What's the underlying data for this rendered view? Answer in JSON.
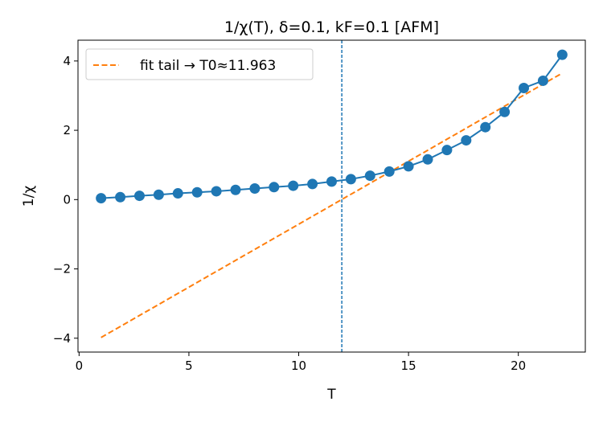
{
  "chart_data": {
    "type": "line",
    "title": "1/χ(T), δ=0.1, kF=0.1  [AFM]",
    "xlabel": "T",
    "ylabel": "1/χ",
    "xlim": [
      -0.05,
      23.05
    ],
    "ylim": [
      -4.4,
      4.6
    ],
    "xticks": [
      0,
      5,
      10,
      15,
      20
    ],
    "yticks": [
      -4,
      -2,
      0,
      2,
      4
    ],
    "xtick_labels": [
      "0",
      "5",
      "10",
      "15",
      "20"
    ],
    "ytick_labels": [
      "−4",
      "−2",
      "0",
      "2",
      "4"
    ],
    "grid": false,
    "legend_position": "top-left",
    "series": [
      {
        "kind": "line-with-markers",
        "color": "#1f77b4",
        "x": [
          1.0,
          1.875,
          2.75,
          3.625,
          4.5,
          5.375,
          6.25,
          7.125,
          8.0,
          8.875,
          9.75,
          10.625,
          11.5,
          12.375,
          13.25,
          14.125,
          15.0,
          15.875,
          16.75,
          17.625,
          18.5,
          19.375,
          20.25,
          21.125,
          22.0
        ],
        "y": [
          0.04,
          0.07,
          0.11,
          0.14,
          0.18,
          0.21,
          0.24,
          0.28,
          0.32,
          0.36,
          0.4,
          0.45,
          0.52,
          0.59,
          0.69,
          0.81,
          0.96,
          1.16,
          1.43,
          1.71,
          2.09,
          2.53,
          3.22,
          3.43,
          4.18
        ]
      },
      {
        "name": "fit tail → T0≈11.963",
        "kind": "dashed-line",
        "color": "#ff7f0e",
        "x": [
          1.0,
          22.0
        ],
        "y": [
          -3.98,
          3.65
        ]
      }
    ],
    "vertical_line": {
      "x": 11.963,
      "color": "#1f77b4",
      "style": "dashed"
    }
  }
}
